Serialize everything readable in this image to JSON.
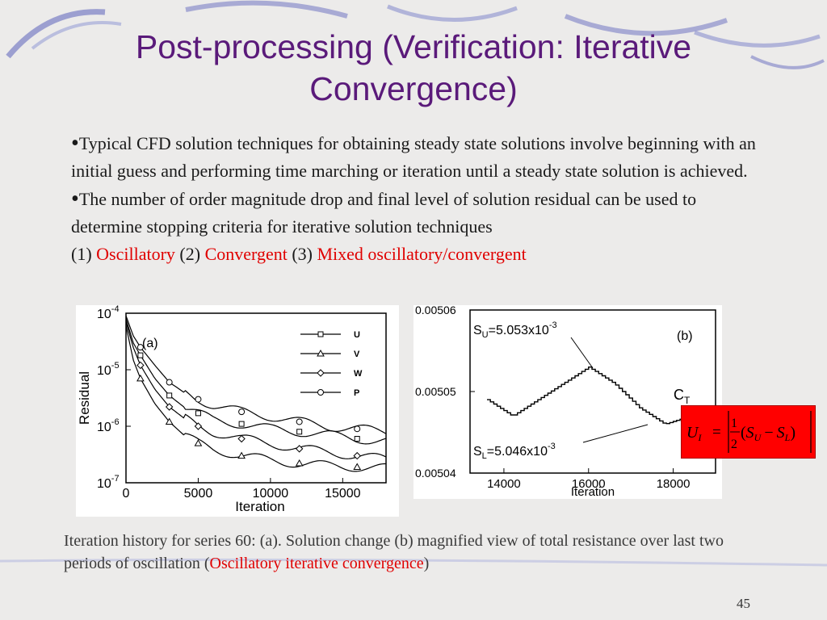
{
  "slide": {
    "title": "Post-processing (Verification: Iterative Convergence)",
    "page_number": "45",
    "bullet_symbol": "•"
  },
  "bullets": {
    "b1": "Typical CFD solution techniques for obtaining steady state solutions involve beginning with an initial guess and performing time marching or iteration until a steady state solution is achieved.",
    "b2_text": "The number of order magnitude drop and final level of solution residual can be used to determine stopping criteria for iterative solution techniques",
    "b2_n1": "(1) ",
    "b2_r1": "Oscillatory",
    "b2_n2": "  (2) ",
    "b2_r2": "Convergent",
    "b2_n3": " (3) ",
    "b2_r3": "Mixed oscillatory/convergent"
  },
  "figure_a": {
    "panel_label": "(a)",
    "ylabel": "Residual",
    "xlabel": "Iteration",
    "ytick_prefix": "10",
    "ytick_exponents": [
      "-4",
      "-5",
      "-6",
      "-7"
    ],
    "xticks": [
      "0",
      "5000",
      "10000",
      "15000"
    ],
    "legend": [
      "U",
      "V",
      "W",
      "P"
    ]
  },
  "figure_b": {
    "panel_label": "(b)",
    "xlabel": "Iteration",
    "yticks": [
      "0.00506",
      "0.00505",
      "0.00504"
    ],
    "xticks": [
      "14000",
      "16000",
      "18000"
    ],
    "su_label": "S",
    "su_sub": "U",
    "su_value": "=5.053x10",
    "su_exp": "-3",
    "sl_label": "S",
    "sl_sub": "L",
    "sl_value": "=5.046x10",
    "sl_exp": "-3",
    "ct_label": "C",
    "ct_sub": "T"
  },
  "formula": {
    "lhs": "U",
    "lhs_sub": "I",
    "equals": "=",
    "num": "1",
    "den": "2",
    "open": "(",
    "su": "S",
    "su_sub": "U",
    "minus": "−",
    "sl": "S",
    "sl_sub": "L",
    "close": ")"
  },
  "caption": {
    "text": "Iteration history for series 60: (a). Solution change (b) magnified view of total resistance over last two periods of oscillation (",
    "red": "Oscillatory iterative convergence",
    "end": ")"
  },
  "chart_data": [
    {
      "type": "line",
      "panel": "(a)",
      "xlabel": "Iteration",
      "ylabel": "Residual",
      "log_y": true,
      "xlim": [
        0,
        18000
      ],
      "ylim": [
        1e-07,
        0.0001
      ],
      "legend_position": "top-right",
      "series": [
        {
          "name": "U",
          "x": [
            0,
            500,
            1000,
            2000,
            3000,
            4000,
            5000,
            6000,
            8000,
            10000,
            12000,
            14000,
            16000,
            18000
          ],
          "y": [
            8e-05,
            3e-05,
            1.8e-05,
            7e-06,
            3.5e-06,
            2.2e-06,
            1.7e-06,
            1.3e-06,
            1.1e-06,
            9e-07,
            8e-07,
            7e-07,
            6e-07,
            5.5e-07
          ]
        },
        {
          "name": "V",
          "x": [
            0,
            500,
            1000,
            2000,
            3000,
            4000,
            5000,
            6000,
            8000,
            10000,
            12000,
            14000,
            16000,
            18000
          ],
          "y": [
            6e-05,
            1.5e-05,
            7e-06,
            2.5e-06,
            1.2e-06,
            7e-07,
            5e-07,
            4e-07,
            3e-07,
            2.5e-07,
            2.2e-07,
            2e-07,
            1.9e-07,
            1.8e-07
          ]
        },
        {
          "name": "W",
          "x": [
            0,
            500,
            1000,
            2000,
            3000,
            4000,
            5000,
            6000,
            8000,
            10000,
            12000,
            14000,
            16000,
            18000
          ],
          "y": [
            7e-05,
            2.5e-05,
            1.2e-05,
            4.5e-06,
            2.2e-06,
            1.4e-06,
            1e-06,
            8e-07,
            6e-07,
            5e-07,
            4e-07,
            3.5e-07,
            3e-07,
            2.6e-07
          ]
        },
        {
          "name": "P",
          "x": [
            0,
            500,
            1000,
            2000,
            3000,
            4000,
            5000,
            6000,
            8000,
            10000,
            12000,
            14000,
            16000,
            18000
          ],
          "y": [
            9e-05,
            4e-05,
            2.5e-05,
            1.2e-05,
            6e-06,
            4e-06,
            3e-06,
            2.4e-06,
            1.8e-06,
            1.5e-06,
            1.2e-06,
            1e-06,
            9e-07,
            8e-07
          ]
        }
      ]
    },
    {
      "type": "line",
      "panel": "(b)",
      "xlabel": "Iteration",
      "xlim": [
        13200,
        19000
      ],
      "ylim": [
        0.0504,
        0.00506
      ],
      "series": [
        {
          "name": "C_T",
          "x": [
            13600,
            14200,
            14800,
            15400,
            16000,
            16600,
            17200,
            17800,
            18400
          ],
          "y": [
            0.005049,
            0.005047,
            0.005049,
            0.005051,
            0.005053,
            0.005051,
            0.005048,
            0.005046,
            0.005047
          ]
        }
      ]
    }
  ]
}
